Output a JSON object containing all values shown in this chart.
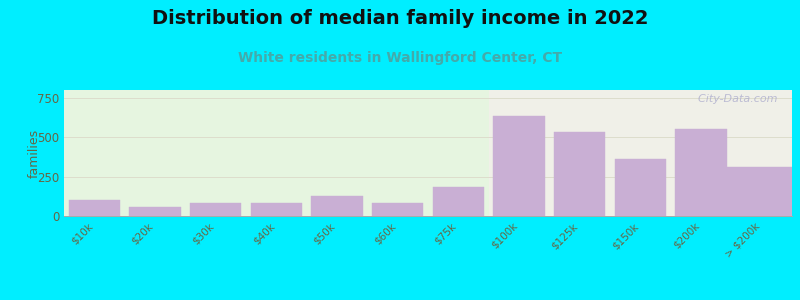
{
  "title": "Distribution of median family income in 2022",
  "subtitle": "White residents in Wallingford Center, CT",
  "ylabel": "families",
  "categories": [
    "$10k",
    "$20k",
    "$30k",
    "$40k",
    "$50k",
    "$60k",
    "$75k",
    "$100k",
    "$125k",
    "$150k",
    "$200k",
    "> $200k"
  ],
  "values": [
    100,
    60,
    80,
    80,
    125,
    85,
    185,
    635,
    535,
    365,
    555,
    310
  ],
  "bar_color": "#c9afd4",
  "bar_edgecolor": "#c9afd4",
  "background_outer": "#00eeff",
  "plot_bg_left": "#e6f5e0",
  "plot_bg_right": "#f0f0e8",
  "title_fontsize": 14,
  "subtitle_fontsize": 10,
  "subtitle_color": "#44aaaa",
  "ylabel_fontsize": 9,
  "ylim": [
    0,
    800
  ],
  "yticks": [
    0,
    250,
    500,
    750
  ],
  "grid_color": "#ddddcc",
  "watermark": "  City-Data.com",
  "watermark_color": "#aaaacc",
  "split_idx": 7
}
